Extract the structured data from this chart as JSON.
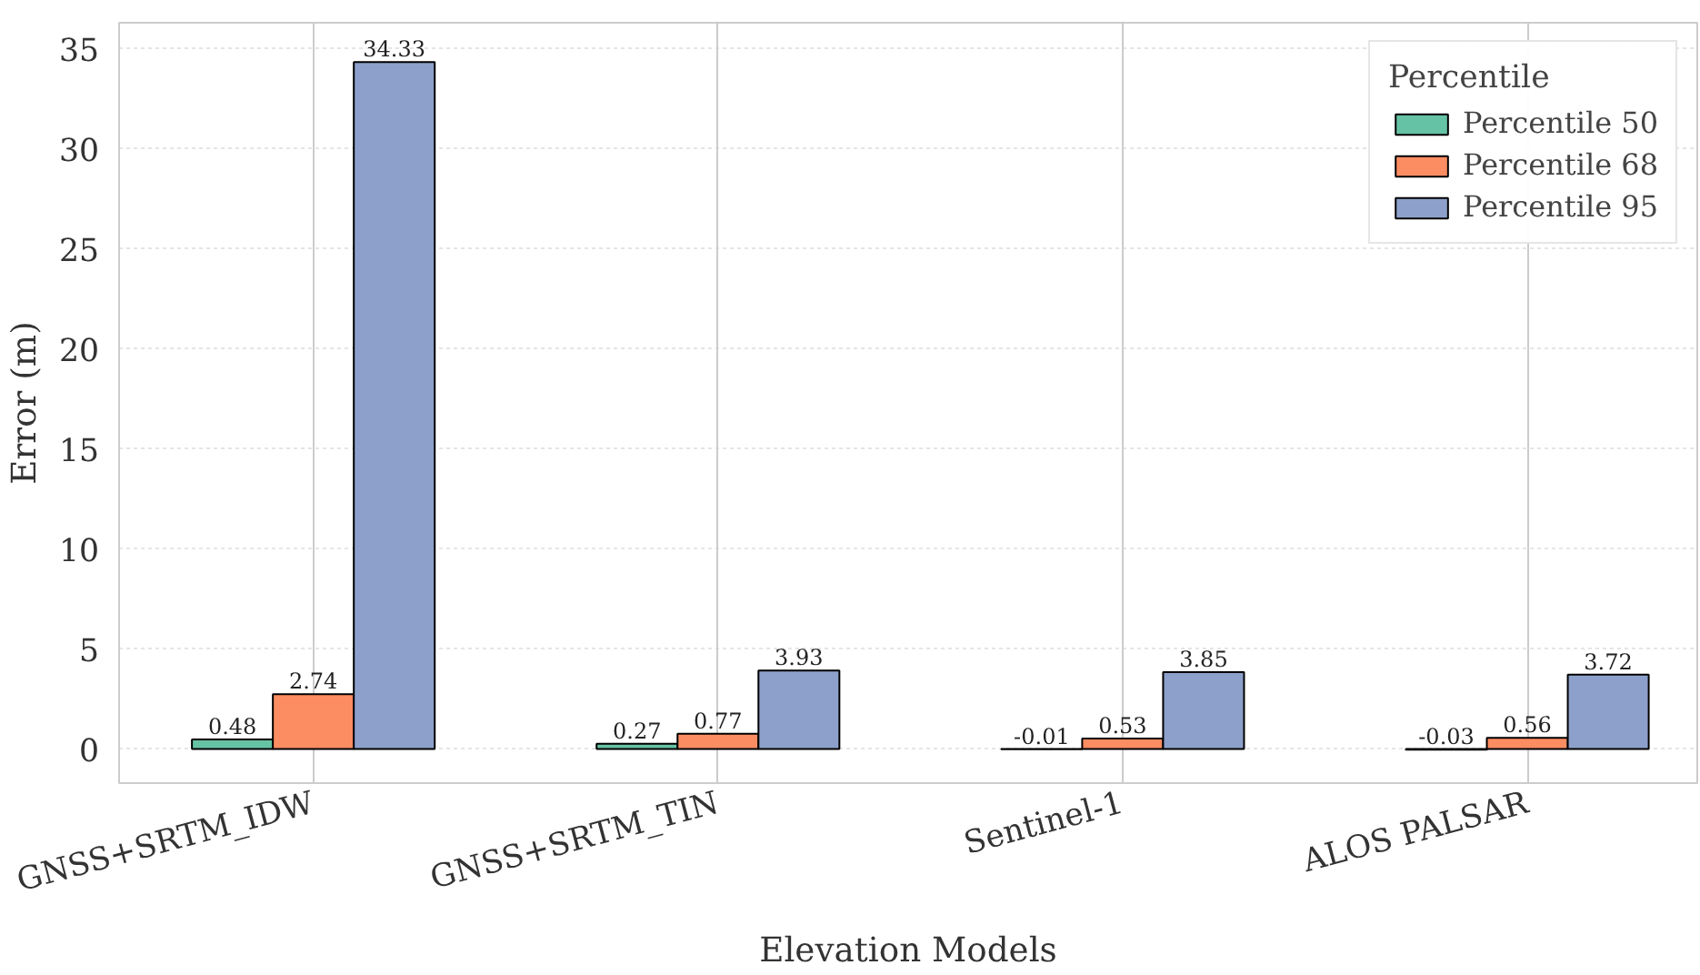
{
  "chart_data": {
    "type": "bar",
    "xlabel": "Elevation Models",
    "ylabel": "Error (m)",
    "legend_title": "Percentile",
    "categories": [
      "GNSS+SRTM_IDW",
      "GNSS+SRTM_TIN",
      "Sentinel-1",
      "ALOS PALSAR"
    ],
    "series": [
      {
        "name": "Percentile 50",
        "color": "#66c2a5",
        "values": [
          0.48,
          0.27,
          -0.01,
          -0.03
        ]
      },
      {
        "name": "Percentile 68",
        "color": "#fc8d62",
        "values": [
          2.74,
          0.77,
          0.53,
          0.56
        ]
      },
      {
        "name": "Percentile 95",
        "color": "#8da0cb",
        "values": [
          34.33,
          3.93,
          3.85,
          3.72
        ]
      }
    ],
    "ylim": [
      -1.7,
      36.3
    ],
    "yticks": [
      0,
      5,
      10,
      15,
      20,
      25,
      30,
      35
    ],
    "grid": true,
    "legend": "top right",
    "data_labels": true
  }
}
